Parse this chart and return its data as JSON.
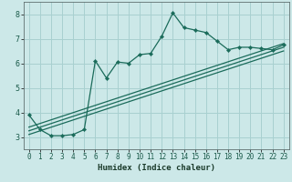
{
  "title": "",
  "xlabel": "Humidex (Indice chaleur)",
  "background_color": "#cce8e8",
  "grid_color": "#a8d0d0",
  "line_color": "#1a6b5a",
  "xlim": [
    -0.5,
    23.5
  ],
  "ylim": [
    2.5,
    8.5
  ],
  "xticks": [
    0,
    1,
    2,
    3,
    4,
    5,
    6,
    7,
    8,
    9,
    10,
    11,
    12,
    13,
    14,
    15,
    16,
    17,
    18,
    19,
    20,
    21,
    22,
    23
  ],
  "yticks": [
    3,
    4,
    5,
    6,
    7,
    8
  ],
  "main_x": [
    0,
    1,
    2,
    3,
    4,
    5,
    6,
    7,
    8,
    9,
    10,
    11,
    12,
    13,
    14,
    15,
    16,
    17,
    18,
    19,
    20,
    21,
    22,
    23
  ],
  "main_y": [
    3.9,
    3.3,
    3.05,
    3.05,
    3.1,
    3.3,
    6.1,
    5.4,
    6.05,
    6.0,
    6.35,
    6.4,
    7.1,
    8.05,
    7.45,
    7.35,
    7.25,
    6.9,
    6.55,
    6.65,
    6.65,
    6.6,
    6.55,
    6.75
  ],
  "line1_x": [
    0,
    23
  ],
  "line1_y": [
    3.1,
    6.5
  ],
  "line2_x": [
    0,
    23
  ],
  "line2_y": [
    3.25,
    6.65
  ],
  "line3_x": [
    0,
    23
  ],
  "line3_y": [
    3.4,
    6.8
  ],
  "xlabel_fontsize": 6.5,
  "tick_fontsize": 5.5
}
